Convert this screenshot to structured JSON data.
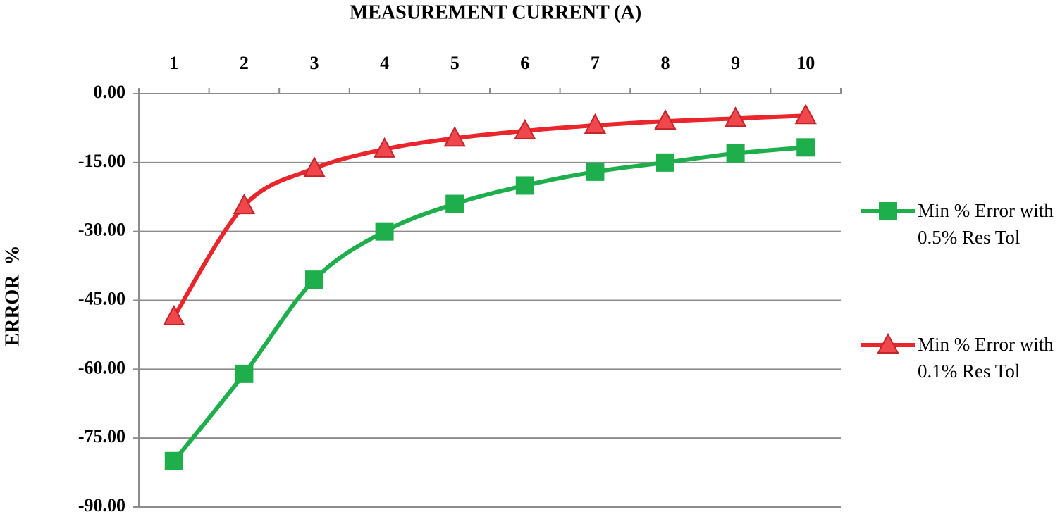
{
  "chart_data": {
    "type": "line",
    "title": "MEASUREMENT CURRENT (A)",
    "y_label": "ERROR  %",
    "categories": [
      "1",
      "2",
      "3",
      "4",
      "5",
      "6",
      "7",
      "8",
      "9",
      "10"
    ],
    "series": [
      {
        "name": "Min % Error with 0.5% Res Tol",
        "color": "#1eae4b",
        "marker": "square",
        "values": [
          -80,
          -61,
          -40.5,
          -30,
          -24,
          -20,
          -17,
          -15,
          -13,
          -11.7
        ]
      },
      {
        "name": "Min % Error with 0.1% Res Tol",
        "color": "#e8262b",
        "marker": "triangle",
        "values": [
          -48.6,
          -24.4,
          -16.3,
          -12.1,
          -9.7,
          -8.1,
          -6.9,
          -6.0,
          -5.4,
          -4.8
        ]
      }
    ],
    "ylim": [
      -90,
      0
    ],
    "yticks": [
      {
        "value": 0,
        "label": "0.00"
      },
      {
        "value": -15,
        "label": "-15.00"
      },
      {
        "value": -30,
        "label": "-30.00"
      },
      {
        "value": -45,
        "label": "-45.00"
      },
      {
        "value": -60,
        "label": "-60.00"
      },
      {
        "value": -75,
        "label": "-75.00"
      },
      {
        "value": -90,
        "label": "-90.00"
      }
    ],
    "grid": true,
    "legend": "right"
  }
}
